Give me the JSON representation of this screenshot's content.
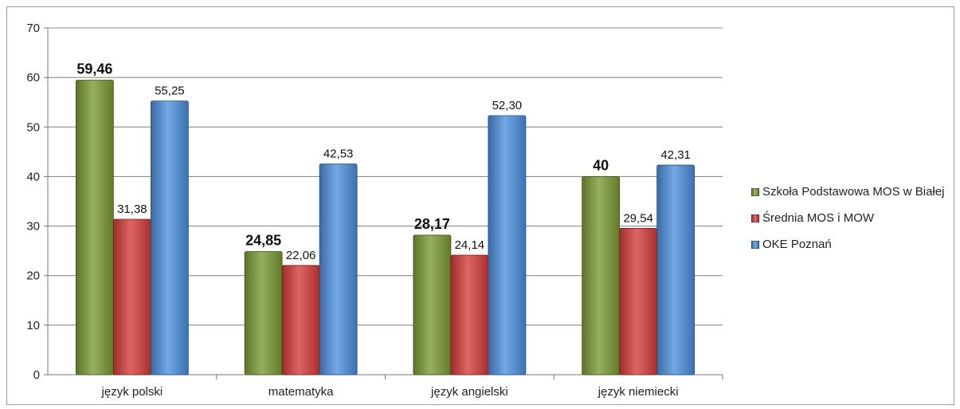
{
  "chart_data": {
    "type": "bar",
    "categories": [
      "język polski",
      "matematyka",
      "język angielski",
      "język niemiecki"
    ],
    "series": [
      {
        "name": "Szkoła Podstawowa MOS w Białej",
        "values": [
          59.46,
          24.85,
          28.17,
          40
        ],
        "labels": [
          "59,46",
          "24,85",
          "28,17",
          "40"
        ],
        "color": "#7a9a33",
        "bold_labels": true
      },
      {
        "name": "Średnia MOS i MOW",
        "values": [
          31.38,
          22.06,
          24.14,
          29.54
        ],
        "labels": [
          "31,38",
          "22,06",
          "24,14",
          "29,54"
        ],
        "color": "#d33b38",
        "bold_labels": false
      },
      {
        "name": "OKE Poznań",
        "values": [
          55.25,
          42.53,
          52.3,
          42.31
        ],
        "labels": [
          "55,25",
          "42,53",
          "52,30",
          "42,31"
        ],
        "color": "#4a8fdc",
        "bold_labels": false
      }
    ],
    "yticks": [
      "0",
      "10",
      "20",
      "30",
      "40",
      "50",
      "60",
      "70"
    ],
    "ylim": [
      0,
      70
    ],
    "grid": true,
    "legend_position": "right"
  }
}
